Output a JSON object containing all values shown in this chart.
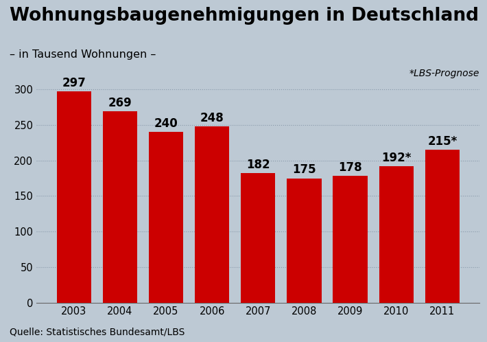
{
  "title": "Wohnungsbaugenehmigungen in Deutschland",
  "subtitle": "– in Tausend Wohnungen –",
  "note": "*LBS-Prognose",
  "source": "Quelle: Statistisches Bundesamt/LBS",
  "years": [
    "2003",
    "2004",
    "2005",
    "2006",
    "2007",
    "2008",
    "2009",
    "2010",
    "2011"
  ],
  "values": [
    297,
    269,
    240,
    248,
    182,
    175,
    178,
    192,
    215
  ],
  "labels": [
    "297",
    "269",
    "240",
    "248",
    "182",
    "175",
    "178",
    "192*",
    "215*"
  ],
  "bar_color": "#CC0000",
  "background_color": "#BDC9D4",
  "plot_background_color": "#BDC9D4",
  "grid_color": "#8899AA",
  "title_color": "#000000",
  "ylim": [
    0,
    315
  ],
  "yticks": [
    0,
    50,
    100,
    150,
    200,
    250,
    300
  ],
  "title_fontsize": 19,
  "subtitle_fontsize": 11.5,
  "label_fontsize": 12,
  "tick_fontsize": 10.5,
  "source_fontsize": 10,
  "note_fontsize": 10
}
